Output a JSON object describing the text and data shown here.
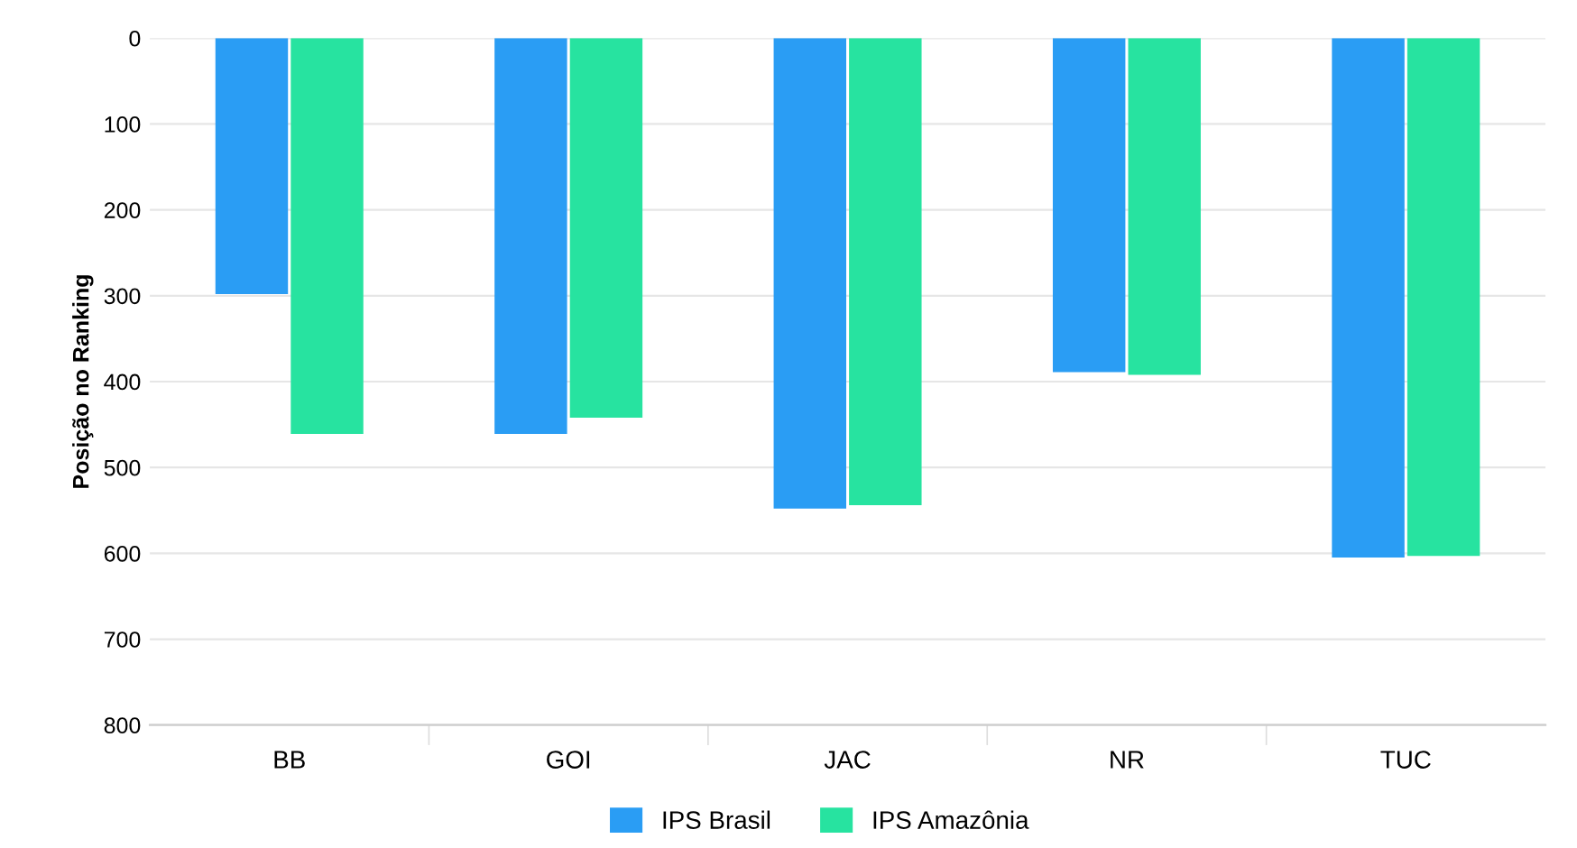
{
  "chart_data": {
    "type": "bar",
    "ylabel": "Posição no Ranking",
    "categories": [
      "BB",
      "GOI",
      "JAC",
      "NR",
      "TUC"
    ],
    "series": [
      {
        "name": "IPS Brasil",
        "color": "#2a9df4",
        "values": [
          298,
          461,
          548,
          389,
          605
        ]
      },
      {
        "name": "IPS Amazônia",
        "color": "#27e3a0",
        "values": [
          461,
          442,
          544,
          392,
          603
        ]
      }
    ],
    "ylim": [
      800,
      0
    ],
    "yticks": [
      0,
      100,
      200,
      300,
      400,
      500,
      600,
      700,
      800
    ],
    "grid": "y",
    "legend": "bottom"
  }
}
